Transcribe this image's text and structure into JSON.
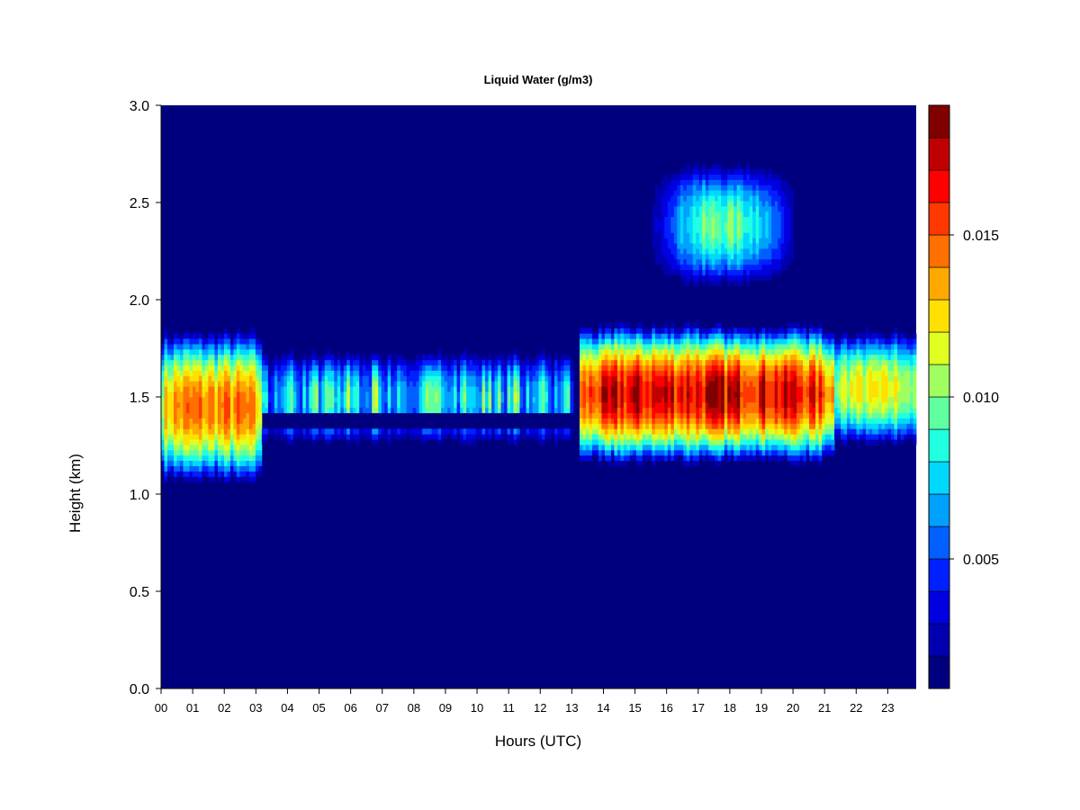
{
  "chart_data": {
    "type": "heatmap",
    "title": "Liquid Water (g/m3)",
    "xlabel": "Hours (UTC)",
    "ylabel": "Height (km)",
    "x_ticks": [
      "00",
      "01",
      "02",
      "03",
      "04",
      "05",
      "06",
      "07",
      "08",
      "09",
      "10",
      "11",
      "12",
      "13",
      "14",
      "15",
      "16",
      "17",
      "18",
      "19",
      "20",
      "21",
      "22",
      "23"
    ],
    "y_ticks": [
      "0.0",
      "0.5",
      "1.0",
      "1.5",
      "2.0",
      "2.5",
      "3.0"
    ],
    "xlim": [
      0,
      23.9
    ],
    "ylim": [
      0,
      3.0
    ],
    "colorbar": {
      "range": [
        0.001,
        0.019
      ],
      "levels": 18,
      "tick_values": [
        0.005,
        0.01,
        0.015
      ],
      "tick_labels": [
        "0.005",
        "0.010",
        "0.015"
      ],
      "colors": [
        "#00007F",
        "#0000B0",
        "#0000E0",
        "#0020FF",
        "#0060FF",
        "#00A0FF",
        "#00D8FF",
        "#20FFE0",
        "#60FFA0",
        "#A0FF60",
        "#E0FF20",
        "#FFE000",
        "#FFA800",
        "#FF7000",
        "#FF3800",
        "#FF0000",
        "#C00000",
        "#800000"
      ]
    },
    "cloud_layers": [
      {
        "t_start": 0.0,
        "t_end": 3.2,
        "z_bottom": 1.05,
        "z_top": 1.85,
        "peak": 0.0145
      },
      {
        "t_start": 3.2,
        "t_end": 13.0,
        "z_bottom": 1.24,
        "z_top": 1.75,
        "peak": 0.0095
      },
      {
        "t_start": 13.2,
        "t_end": 21.3,
        "z_bottom": 1.15,
        "z_top": 1.88,
        "peak": 0.0175
      },
      {
        "t_start": 21.3,
        "t_end": 23.9,
        "z_bottom": 1.24,
        "z_top": 1.85,
        "peak": 0.012
      },
      {
        "t_start": 15.5,
        "t_end": 20.3,
        "z_bottom": 2.05,
        "z_top": 2.72,
        "peak": 0.01
      }
    ]
  }
}
